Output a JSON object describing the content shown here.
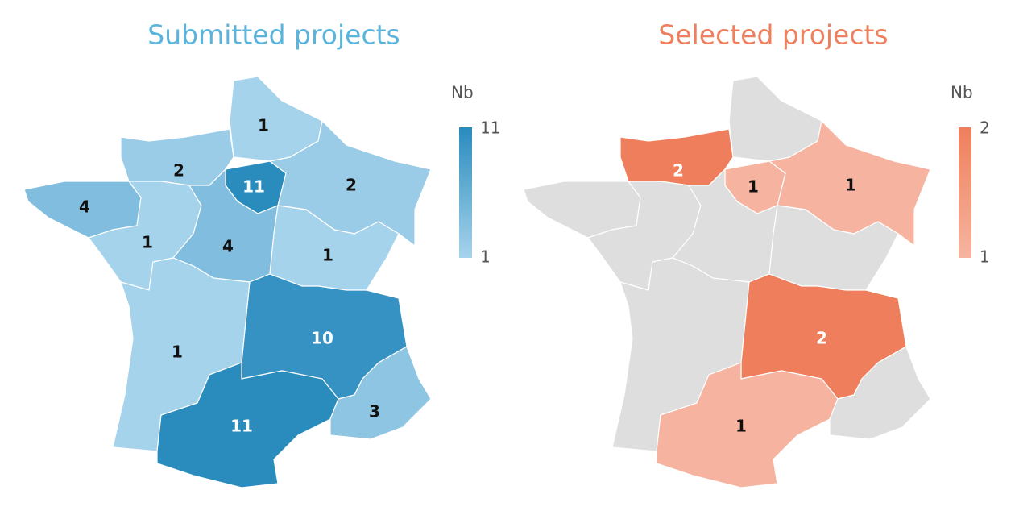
{
  "maps": [
    {
      "title": "Submitted projects",
      "title_color": "#5ab4dc",
      "color_low": "#a6d3ec",
      "color_high": "#2a8bbd",
      "empty_color": "#dedede",
      "legend": {
        "title": "Nb",
        "max": 11,
        "min": 1
      },
      "regions": [
        {
          "value": 1
        },
        {
          "value": 2
        },
        {
          "value": 11
        },
        {
          "value": 2
        },
        {
          "value": 4
        },
        {
          "value": 1
        },
        {
          "value": 4
        },
        {
          "value": 1
        },
        {
          "value": 1
        },
        {
          "value": 10
        },
        {
          "value": 11
        },
        {
          "value": 3
        }
      ]
    },
    {
      "title": "Selected projects",
      "title_color": "#ee8060",
      "color_low": "#f6b4a0",
      "color_high": "#ef7f5c",
      "empty_color": "#dedede",
      "legend": {
        "title": "Nb",
        "max": 2,
        "min": 1
      },
      "regions": [
        {
          "value": null
        },
        {
          "value": 2
        },
        {
          "value": 1
        },
        {
          "value": 1
        },
        {
          "value": null
        },
        {
          "value": null
        },
        {
          "value": null
        },
        {
          "value": null
        },
        {
          "value": null
        },
        {
          "value": 2
        },
        {
          "value": 1
        },
        {
          "value": null
        }
      ]
    }
  ]
}
